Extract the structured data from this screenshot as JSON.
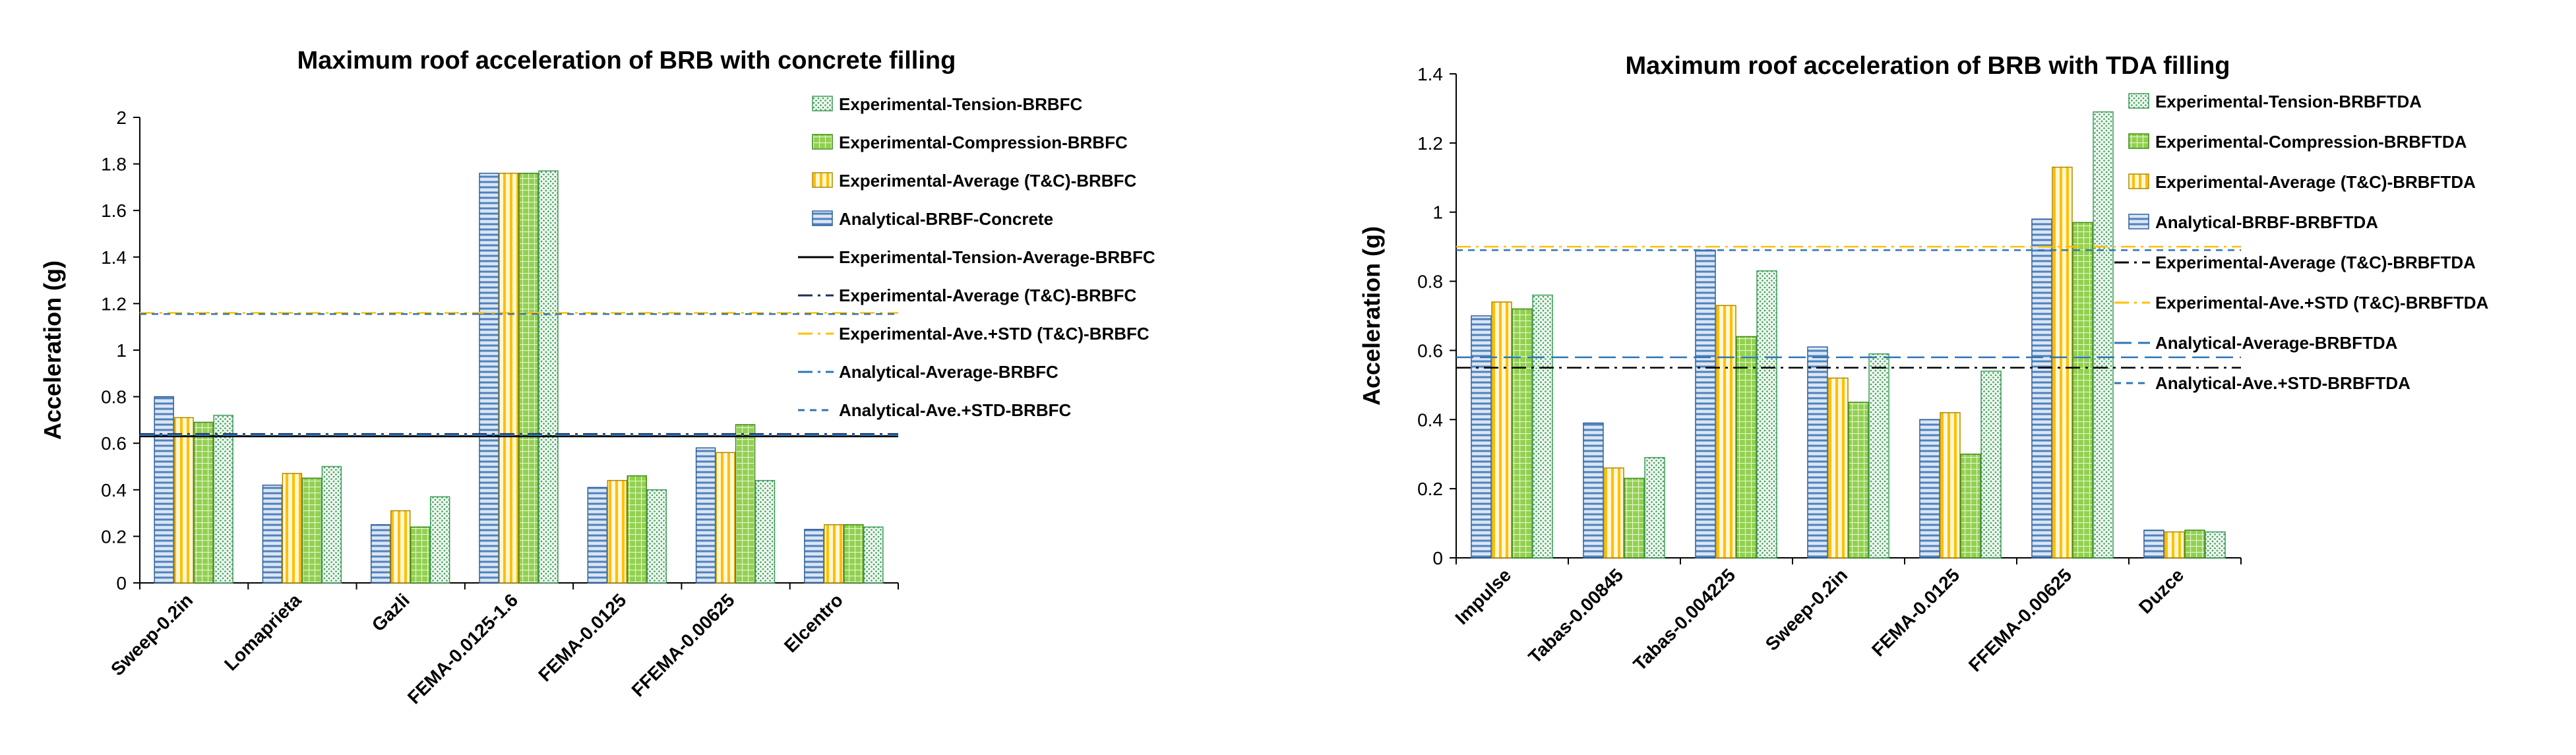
{
  "chart_data": [
    {
      "type": "bar",
      "title": "Maximum roof acceleration of BRB with concrete filling",
      "xlabel": "",
      "ylabel": "Acceleration (g)",
      "ylim": [
        0,
        2
      ],
      "yticks": [
        "0",
        "0.2",
        "0.4",
        "0.6",
        "0.8",
        "1",
        "1.2",
        "1.4",
        "1.6",
        "1.8",
        "2"
      ],
      "categories": [
        "Sweep-0.2in",
        "Lomaprieta",
        "Gazli",
        "FEMA-0.0125-1.6",
        "FEMA-0.0125",
        "FFEMA-0.00625",
        "Elcentro"
      ],
      "series": [
        {
          "name": "Analytical-BRBF-Concrete",
          "pattern": "hlines",
          "color": "#4f81bd",
          "values": [
            0.8,
            0.42,
            0.25,
            1.76,
            0.41,
            0.58,
            0.23
          ]
        },
        {
          "name": "Experimental-Average (T&C)-BRBFC",
          "pattern": "vstripes",
          "color": "#ffc000",
          "values": [
            0.71,
            0.47,
            0.31,
            1.76,
            0.44,
            0.56,
            0.25
          ]
        },
        {
          "name": "Experimental-Compression-BRBFC",
          "pattern": "grid",
          "color": "#92d050",
          "values": [
            0.69,
            0.45,
            0.24,
            1.76,
            0.46,
            0.68,
            0.25
          ]
        },
        {
          "name": "Experimental-Tension-BRBFC",
          "pattern": "dots",
          "color": "#8fd1a3",
          "values": [
            0.72,
            0.5,
            0.37,
            1.77,
            0.4,
            0.44,
            0.24
          ]
        }
      ],
      "lines": [
        {
          "name": "Experimental-Tension-Average-BRBFC",
          "value": 0.63,
          "color": "#000000",
          "dash": "solid"
        },
        {
          "name": "Experimental-Average (T&C)-BRBFC",
          "value": 0.64,
          "color": "#1f2d5a",
          "dash": "dashdot"
        },
        {
          "name": "Experimental-Ave.+STD (T&C)-BRBFC",
          "value": 1.16,
          "color": "#ffc000",
          "dash": "dashdot"
        },
        {
          "name": "Analytical-Average-BRBFC",
          "value": 0.635,
          "color": "#2e75b6",
          "dash": "dashdot"
        },
        {
          "name": "Analytical-Ave.+STD-BRBFC",
          "value": 1.155,
          "color": "#2e75b6",
          "dash": "dash"
        }
      ],
      "legend": [
        {
          "label": "Experimental-Tension-BRBFC",
          "kind": "dots",
          "color": "#8fd1a3"
        },
        {
          "label": "Experimental-Compression-BRBFC",
          "kind": "grid",
          "color": "#92d050"
        },
        {
          "label": "Experimental-Average (T&C)-BRBFC",
          "kind": "vstripes",
          "color": "#ffc000"
        },
        {
          "label": "Analytical-BRBF-Concrete",
          "kind": "hlines",
          "color": "#4f81bd"
        },
        {
          "label": "Experimental-Tension-Average-BRBFC",
          "kind": "line",
          "color": "#000000",
          "dash": "solid"
        },
        {
          "label": "Experimental-Average (T&C)-BRBFC",
          "kind": "line",
          "color": "#1f2d5a",
          "dash": "dashdot"
        },
        {
          "label": "Experimental-Ave.+STD (T&C)-BRBFC",
          "kind": "line",
          "color": "#ffc000",
          "dash": "dashdot"
        },
        {
          "label": "Analytical-Average-BRBFC",
          "kind": "line",
          "color": "#2e75b6",
          "dash": "dashdot"
        },
        {
          "label": "Analytical-Ave.+STD-BRBFC",
          "kind": "line",
          "color": "#2e75b6",
          "dash": "dash"
        }
      ]
    },
    {
      "type": "bar",
      "title": "Maximum roof acceleration of BRB with TDA filling",
      "xlabel": "",
      "ylabel": "Acceleration (g)",
      "ylim": [
        0,
        1.4
      ],
      "yticks": [
        "0",
        "0.2",
        "0.4",
        "0.6",
        "0.8",
        "1",
        "1.2",
        "1.4"
      ],
      "categories": [
        "Impulse",
        "Tabas-0.00845",
        "Tabas-0.004225",
        "Sweep-0.2in",
        "FEMA-0.0125",
        "FFEMA-0.00625",
        "Duzce"
      ],
      "series": [
        {
          "name": "Analytical-BRBF-BRBFTDA",
          "pattern": "hlines",
          "color": "#4f81bd",
          "values": [
            0.7,
            0.39,
            0.89,
            0.61,
            0.4,
            0.98,
            0.08
          ]
        },
        {
          "name": "Experimental-Average (T&C)-BRBFTDA",
          "pattern": "vstripes",
          "color": "#ffc000",
          "values": [
            0.74,
            0.26,
            0.73,
            0.52,
            0.42,
            1.13,
            0.075
          ]
        },
        {
          "name": "Experimental-Compression-BRBFTDA",
          "pattern": "grid",
          "color": "#92d050",
          "values": [
            0.72,
            0.23,
            0.64,
            0.45,
            0.3,
            0.97,
            0.08
          ]
        },
        {
          "name": "Experimental-Tension-BRBFTDA",
          "pattern": "dots",
          "color": "#8fd1a3",
          "values": [
            0.76,
            0.29,
            0.83,
            0.59,
            0.54,
            1.29,
            0.075
          ]
        }
      ],
      "lines": [
        {
          "name": "Experimental-Average (T&C)-BRBFTDA",
          "value": 0.55,
          "color": "#000000",
          "dash": "dashdot"
        },
        {
          "name": "Experimental-Ave.+STD (T&C)-BRBFTDA",
          "value": 0.9,
          "color": "#ffc000",
          "dash": "dashdot"
        },
        {
          "name": "Analytical-Average-BRBFTDA",
          "value": 0.58,
          "color": "#2e75b6",
          "dash": "longdash"
        },
        {
          "name": "Analytical-Ave.+STD-BRBFTDA",
          "value": 0.89,
          "color": "#2e75b6",
          "dash": "dash"
        }
      ],
      "legend": [
        {
          "label": "Experimental-Tension-BRBFTDA",
          "kind": "dots",
          "color": "#8fd1a3"
        },
        {
          "label": "Experimental-Compression-BRBFTDA",
          "kind": "grid",
          "color": "#92d050"
        },
        {
          "label": "Experimental-Average (T&C)-BRBFTDA",
          "kind": "vstripes",
          "color": "#ffc000"
        },
        {
          "label": "Analytical-BRBF-BRBFTDA",
          "kind": "hlines",
          "color": "#4f81bd"
        },
        {
          "label": "Experimental-Average (T&C)-BRBFTDA",
          "kind": "line",
          "color": "#000000",
          "dash": "dashdot"
        },
        {
          "label": "Experimental-Ave.+STD (T&C)-BRBFTDA",
          "kind": "line",
          "color": "#ffc000",
          "dash": "dashdot"
        },
        {
          "label": "Analytical-Average-BRBFTDA",
          "kind": "line",
          "color": "#2e75b6",
          "dash": "longdash"
        },
        {
          "label": "Analytical-Ave.+STD-BRBFTDA",
          "kind": "line",
          "color": "#2e75b6",
          "dash": "dash"
        }
      ]
    }
  ]
}
